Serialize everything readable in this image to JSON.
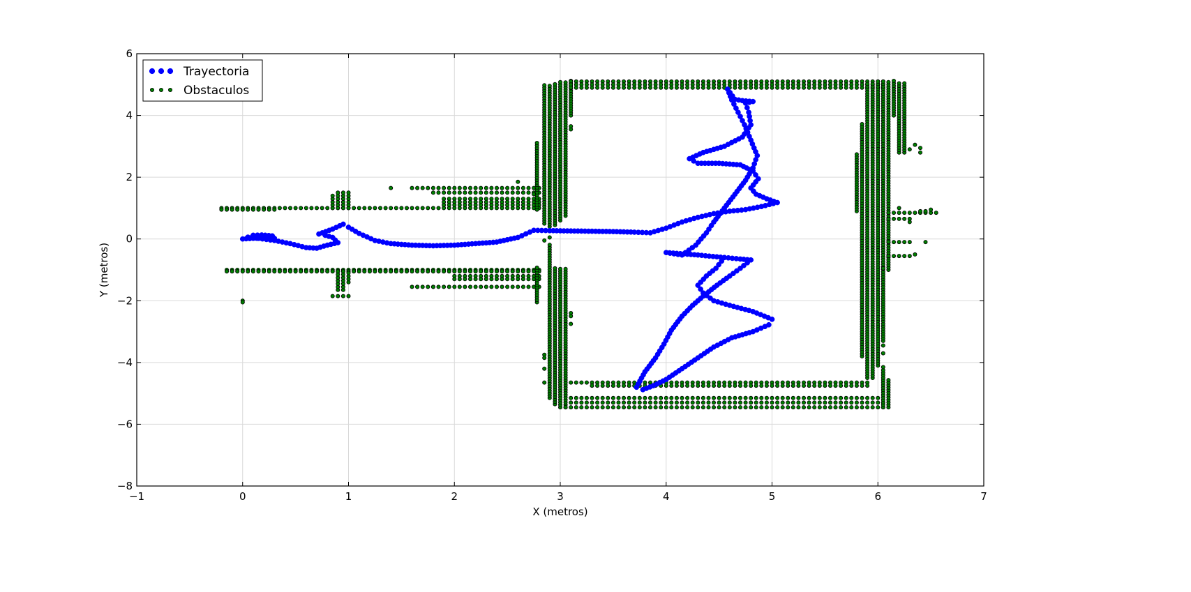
{
  "chart_data": {
    "type": "scatter",
    "title": "",
    "xlabel": "X (metros)",
    "ylabel": "Y (metros)",
    "xlim": [
      -1,
      7
    ],
    "ylim": [
      -8,
      6
    ],
    "xticks": [
      -1,
      0,
      1,
      2,
      3,
      4,
      5,
      6,
      7
    ],
    "yticks": [
      -8,
      -6,
      -4,
      -2,
      0,
      2,
      4,
      6
    ],
    "xtick_labels": [
      "−1",
      "0",
      "1",
      "2",
      "3",
      "4",
      "5",
      "6",
      "7"
    ],
    "ytick_labels": [
      "−8",
      "−6",
      "−4",
      "−2",
      "0",
      "2",
      "4",
      "6"
    ],
    "grid": true,
    "legend_position": "upper-left",
    "series": [
      {
        "name": "Trayectoria",
        "color": "#0000ff",
        "marker": "circle-large",
        "points": [
          [
            0.0,
            0.0
          ],
          [
            0.1,
            0.02
          ],
          [
            0.2,
            0.03
          ],
          [
            0.3,
            0.02
          ],
          [
            0.28,
            0.1
          ],
          [
            0.18,
            0.13
          ],
          [
            0.1,
            0.12
          ],
          [
            0.05,
            0.06
          ],
          [
            0.15,
            0.02
          ],
          [
            0.3,
            -0.05
          ],
          [
            0.45,
            -0.15
          ],
          [
            0.6,
            -0.28
          ],
          [
            0.7,
            -0.3
          ],
          [
            0.8,
            -0.2
          ],
          [
            0.9,
            -0.12
          ],
          [
            0.85,
            0.05
          ],
          [
            0.78,
            0.12
          ],
          [
            0.72,
            0.16
          ],
          [
            0.85,
            0.32
          ],
          [
            0.95,
            0.48
          ],
          [
            1.0,
            0.38
          ],
          [
            1.1,
            0.18
          ],
          [
            1.25,
            -0.05
          ],
          [
            1.4,
            -0.15
          ],
          [
            1.6,
            -0.2
          ],
          [
            1.8,
            -0.22
          ],
          [
            2.0,
            -0.2
          ],
          [
            2.2,
            -0.15
          ],
          [
            2.4,
            -0.1
          ],
          [
            2.6,
            0.05
          ],
          [
            2.75,
            0.28
          ],
          [
            2.9,
            0.27
          ],
          [
            3.1,
            0.26
          ],
          [
            3.3,
            0.25
          ],
          [
            3.5,
            0.24
          ],
          [
            3.7,
            0.22
          ],
          [
            3.85,
            0.2
          ],
          [
            4.0,
            0.35
          ],
          [
            4.15,
            0.55
          ],
          [
            4.3,
            0.7
          ],
          [
            4.45,
            0.82
          ],
          [
            4.6,
            0.9
          ],
          [
            4.75,
            0.95
          ],
          [
            4.9,
            1.05
          ],
          [
            5.05,
            1.18
          ],
          [
            4.95,
            1.3
          ],
          [
            4.85,
            1.45
          ],
          [
            4.8,
            1.65
          ],
          [
            4.87,
            1.95
          ],
          [
            4.82,
            2.2
          ],
          [
            4.7,
            2.4
          ],
          [
            4.5,
            2.45
          ],
          [
            4.3,
            2.45
          ],
          [
            4.22,
            2.6
          ],
          [
            4.35,
            2.8
          ],
          [
            4.55,
            3.0
          ],
          [
            4.72,
            3.3
          ],
          [
            4.8,
            3.7
          ],
          [
            4.78,
            4.1
          ],
          [
            4.75,
            4.4
          ],
          [
            4.82,
            4.45
          ],
          [
            4.72,
            4.48
          ],
          [
            4.65,
            4.52
          ],
          [
            4.58,
            4.85
          ],
          [
            4.62,
            4.5
          ],
          [
            4.68,
            4.1
          ],
          [
            4.74,
            3.7
          ],
          [
            4.8,
            3.2
          ],
          [
            4.86,
            2.7
          ],
          [
            4.82,
            2.3
          ],
          [
            4.75,
            1.9
          ],
          [
            4.65,
            1.45
          ],
          [
            4.55,
            1.0
          ],
          [
            4.45,
            0.55
          ],
          [
            4.38,
            0.2
          ],
          [
            4.28,
            -0.2
          ],
          [
            4.15,
            -0.52
          ],
          [
            4.0,
            -0.44
          ],
          [
            4.3,
            -0.52
          ],
          [
            4.55,
            -0.6
          ],
          [
            4.7,
            -0.65
          ],
          [
            4.8,
            -0.68
          ],
          [
            4.7,
            -0.95
          ],
          [
            4.6,
            -1.2
          ],
          [
            4.48,
            -1.5
          ],
          [
            4.35,
            -1.85
          ],
          [
            4.25,
            -2.15
          ],
          [
            4.15,
            -2.5
          ],
          [
            4.05,
            -2.95
          ],
          [
            3.98,
            -3.4
          ],
          [
            3.9,
            -3.85
          ],
          [
            3.8,
            -4.3
          ],
          [
            3.72,
            -4.8
          ],
          [
            3.78,
            -4.88
          ],
          [
            3.88,
            -4.75
          ],
          [
            4.0,
            -4.55
          ],
          [
            4.15,
            -4.2
          ],
          [
            4.3,
            -3.85
          ],
          [
            4.45,
            -3.5
          ],
          [
            4.62,
            -3.2
          ],
          [
            4.82,
            -3.0
          ],
          [
            4.97,
            -2.78
          ],
          [
            5.0,
            -2.6
          ],
          [
            4.82,
            -2.35
          ],
          [
            4.6,
            -2.15
          ],
          [
            4.45,
            -2.0
          ],
          [
            4.35,
            -1.75
          ],
          [
            4.3,
            -1.5
          ],
          [
            4.38,
            -1.2
          ],
          [
            4.47,
            -0.95
          ],
          [
            4.55,
            -0.6
          ]
        ]
      },
      {
        "name": "Obstaculos",
        "color": "#007f00",
        "marker": "circle-small",
        "runs": [
          {
            "dir": "h",
            "fixed": 1.0,
            "from": -0.2,
            "to": 2.8,
            "step": 0.05
          },
          {
            "dir": "h",
            "fixed": 0.95,
            "from": -0.2,
            "to": 0.3,
            "step": 0.05
          },
          {
            "dir": "h",
            "fixed": -1.0,
            "from": -0.15,
            "to": 2.8,
            "step": 0.05
          },
          {
            "dir": "h",
            "fixed": -1.05,
            "from": -0.15,
            "to": 2.8,
            "step": 0.05
          },
          {
            "dir": "h",
            "fixed": 1.65,
            "from": 1.6,
            "to": 2.8,
            "step": 0.05
          },
          {
            "dir": "h",
            "fixed": 1.5,
            "from": 1.8,
            "to": 2.8,
            "step": 0.05
          },
          {
            "dir": "h",
            "fixed": 1.3,
            "from": 1.9,
            "to": 2.8,
            "step": 0.05
          },
          {
            "dir": "h",
            "fixed": 1.2,
            "from": 1.9,
            "to": 2.8,
            "step": 0.05
          },
          {
            "dir": "h",
            "fixed": 1.1,
            "from": 1.9,
            "to": 2.8,
            "step": 0.05
          },
          {
            "dir": "h",
            "fixed": -1.2,
            "from": 2.0,
            "to": 2.8,
            "step": 0.05
          },
          {
            "dir": "h",
            "fixed": -1.3,
            "from": 2.0,
            "to": 2.8,
            "step": 0.05
          },
          {
            "dir": "h",
            "fixed": -1.55,
            "from": 1.6,
            "to": 2.8,
            "step": 0.05
          },
          {
            "dir": "v",
            "fixed": 0.85,
            "from": 1.0,
            "to": 1.45,
            "step": 0.1
          },
          {
            "dir": "v",
            "fixed": 0.9,
            "from": 1.0,
            "to": 1.5,
            "step": 0.1
          },
          {
            "dir": "v",
            "fixed": 0.95,
            "from": 1.0,
            "to": 1.5,
            "step": 0.1
          },
          {
            "dir": "v",
            "fixed": 1.0,
            "from": 1.0,
            "to": 1.5,
            "step": 0.1
          },
          {
            "dir": "v",
            "fixed": 0.9,
            "from": -1.65,
            "to": -1.05,
            "step": 0.1
          },
          {
            "dir": "v",
            "fixed": 0.95,
            "from": -1.65,
            "to": -1.05,
            "step": 0.1
          },
          {
            "dir": "v",
            "fixed": 1.0,
            "from": -1.4,
            "to": -1.05,
            "step": 0.1
          },
          {
            "dir": "h",
            "fixed": -1.85,
            "from": 0.85,
            "to": 1.0,
            "step": 0.05
          },
          {
            "dir": "v",
            "fixed": 2.78,
            "from": 0.95,
            "to": 3.1,
            "step": 0.08
          },
          {
            "dir": "v",
            "fixed": 2.85,
            "from": 0.5,
            "to": 4.95,
            "step": 0.08
          },
          {
            "dir": "v",
            "fixed": 2.9,
            "from": 0.4,
            "to": 5.0,
            "step": 0.08
          },
          {
            "dir": "v",
            "fixed": 2.95,
            "from": 0.45,
            "to": 5.05,
            "step": 0.08
          },
          {
            "dir": "v",
            "fixed": 3.0,
            "from": 0.6,
            "to": 5.05,
            "step": 0.08
          },
          {
            "dir": "v",
            "fixed": 3.05,
            "from": 0.75,
            "to": 5.1,
            "step": 0.08
          },
          {
            "dir": "v",
            "fixed": 3.1,
            "from": 4.0,
            "to": 5.1,
            "step": 0.08
          },
          {
            "dir": "v",
            "fixed": 2.78,
            "from": -2.05,
            "to": -0.95,
            "step": 0.08
          },
          {
            "dir": "v",
            "fixed": 2.9,
            "from": -5.15,
            "to": -0.2,
            "step": 0.08
          },
          {
            "dir": "v",
            "fixed": 2.95,
            "from": -5.35,
            "to": -0.95,
            "step": 0.08
          },
          {
            "dir": "v",
            "fixed": 3.0,
            "from": -5.45,
            "to": -1.0,
            "step": 0.08
          },
          {
            "dir": "v",
            "fixed": 3.05,
            "from": -5.45,
            "to": -1.0,
            "step": 0.08
          },
          {
            "dir": "h",
            "fixed": 5.1,
            "from": 3.1,
            "to": 6.05,
            "step": 0.05
          },
          {
            "dir": "h",
            "fixed": 5.0,
            "from": 3.1,
            "to": 6.05,
            "step": 0.05
          },
          {
            "dir": "h",
            "fixed": 4.9,
            "from": 3.1,
            "to": 6.05,
            "step": 0.05
          },
          {
            "dir": "h",
            "fixed": -4.65,
            "from": 3.1,
            "to": 5.9,
            "step": 0.05
          },
          {
            "dir": "h",
            "fixed": -4.75,
            "from": 3.3,
            "to": 5.9,
            "step": 0.05
          },
          {
            "dir": "h",
            "fixed": -5.15,
            "from": 3.1,
            "to": 6.0,
            "step": 0.05
          },
          {
            "dir": "h",
            "fixed": -5.3,
            "from": 3.1,
            "to": 6.05,
            "step": 0.05
          },
          {
            "dir": "h",
            "fixed": -5.45,
            "from": 3.05,
            "to": 6.05,
            "step": 0.05
          },
          {
            "dir": "v",
            "fixed": 5.8,
            "from": 0.9,
            "to": 2.7,
            "step": 0.08
          },
          {
            "dir": "v",
            "fixed": 5.85,
            "from": -3.8,
            "to": 3.7,
            "step": 0.08
          },
          {
            "dir": "v",
            "fixed": 5.9,
            "from": -4.5,
            "to": 5.0,
            "step": 0.08
          },
          {
            "dir": "v",
            "fixed": 5.95,
            "from": -4.5,
            "to": 5.05,
            "step": 0.08
          },
          {
            "dir": "v",
            "fixed": 6.0,
            "from": -4.1,
            "to": 5.1,
            "step": 0.08
          },
          {
            "dir": "v",
            "fixed": 6.05,
            "from": -3.3,
            "to": 5.1,
            "step": 0.08
          },
          {
            "dir": "v",
            "fixed": 6.1,
            "from": -1.0,
            "to": 5.1,
            "step": 0.08
          },
          {
            "dir": "v",
            "fixed": 6.15,
            "from": 4.0,
            "to": 5.1,
            "step": 0.08
          },
          {
            "dir": "v",
            "fixed": 6.05,
            "from": -5.45,
            "to": -4.25,
            "step": 0.08
          },
          {
            "dir": "v",
            "fixed": 6.1,
            "from": -5.45,
            "to": -4.55,
            "step": 0.08
          },
          {
            "dir": "v",
            "fixed": 6.2,
            "from": 2.8,
            "to": 5.0,
            "step": 0.08
          },
          {
            "dir": "v",
            "fixed": 6.25,
            "from": 2.8,
            "to": 5.0,
            "step": 0.08
          },
          {
            "dir": "h",
            "fixed": 0.85,
            "from": 6.1,
            "to": 6.55,
            "step": 0.05
          },
          {
            "dir": "h",
            "fixed": 0.65,
            "from": 6.1,
            "to": 6.3,
            "step": 0.05
          },
          {
            "dir": "h",
            "fixed": -0.1,
            "from": 6.1,
            "to": 6.3,
            "step": 0.05
          },
          {
            "dir": "h",
            "fixed": -0.55,
            "from": 6.1,
            "to": 6.3,
            "step": 0.05
          }
        ],
        "points": [
          [
            0.0,
            -2.0
          ],
          [
            0.0,
            -2.05
          ],
          [
            1.4,
            1.65
          ],
          [
            2.6,
            1.85
          ],
          [
            2.75,
            1.45
          ],
          [
            1.8,
            -1.55
          ],
          [
            1.65,
            -1.55
          ],
          [
            3.1,
            3.55
          ],
          [
            3.1,
            3.65
          ],
          [
            3.1,
            -2.4
          ],
          [
            3.1,
            -2.5
          ],
          [
            3.1,
            -2.75
          ],
          [
            2.85,
            -3.75
          ],
          [
            2.85,
            -3.85
          ],
          [
            2.85,
            -4.2
          ],
          [
            2.85,
            -4.65
          ],
          [
            2.85,
            -0.05
          ],
          [
            2.9,
            0.05
          ],
          [
            6.3,
            2.9
          ],
          [
            6.35,
            3.05
          ],
          [
            6.4,
            2.95
          ],
          [
            6.4,
            2.8
          ],
          [
            6.45,
            0.9
          ],
          [
            6.5,
            0.95
          ],
          [
            6.45,
            -0.1
          ],
          [
            6.35,
            -0.5
          ],
          [
            6.3,
            0.55
          ],
          [
            6.2,
            1.0
          ],
          [
            6.4,
            0.9
          ],
          [
            6.05,
            -0.95
          ],
          [
            6.05,
            -3.7
          ],
          [
            6.05,
            -4.15
          ],
          [
            6.05,
            -3.45
          ]
        ]
      }
    ]
  }
}
